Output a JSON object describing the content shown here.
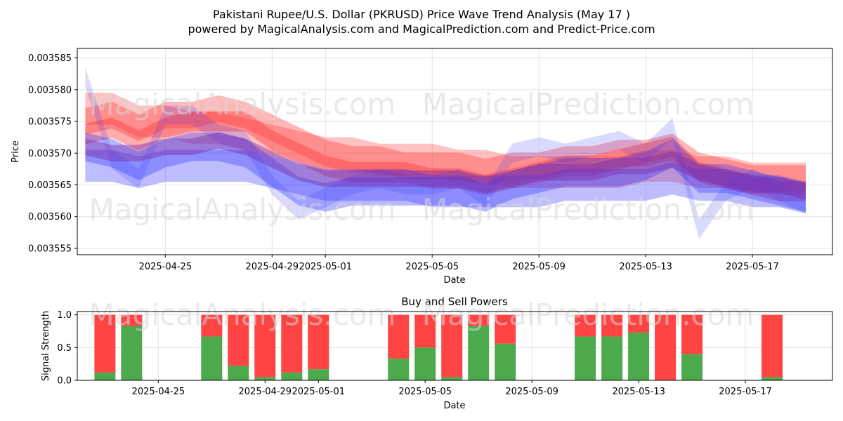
{
  "header": {
    "title_line1": "Pakistani Rupee/U.S. Dollar (PKRUSD) Price Wave Trend Analysis (May 17 )",
    "title_line2": "powered by MagicalAnalysis.com and MagicalPrediction.com and Predict-Price.com"
  },
  "watermarks": {
    "a": "MagicalAnalysis.com",
    "b": "MagicalPrediction.com"
  },
  "colors": {
    "red": "#ff4444",
    "blue": "#4444ff",
    "green": "#4caa4c",
    "grid": "#e6e6e6"
  },
  "chart_data": [
    {
      "type": "area",
      "title": "",
      "xlabel": "Date",
      "ylabel": "Price",
      "ylim": [
        0.003554,
        0.0035865
      ],
      "xlim": [
        "2025-04-21.7",
        "2025-05-20.0"
      ],
      "x_ticks": [
        "2025-04-25",
        "2025-04-29",
        "2025-05-01",
        "2025-05-05",
        "2025-05-09",
        "2025-05-13",
        "2025-05-17"
      ],
      "y_ticks": [
        "0.003555",
        "0.003560",
        "0.003565",
        "0.003570",
        "0.003575",
        "0.003580",
        "0.003585"
      ],
      "grid": true,
      "dates": [
        "2025-04-22",
        "2025-04-23",
        "2025-04-24",
        "2025-04-25",
        "2025-04-26",
        "2025-04-27",
        "2025-04-28",
        "2025-04-29",
        "2025-04-30",
        "2025-05-01",
        "2025-05-02",
        "2025-05-03",
        "2025-05-04",
        "2025-05-05",
        "2025-05-06",
        "2025-05-07",
        "2025-05-08",
        "2025-05-09",
        "2025-05-10",
        "2025-05-11",
        "2025-05-12",
        "2025-05-13",
        "2025-05-14",
        "2025-05-15",
        "2025-05-16",
        "2025-05-17",
        "2025-05-18",
        "2025-05-19"
      ],
      "series": [
        {
          "color": "red",
          "kind": "band",
          "values": [
            0.003575,
            0.003576,
            0.003574,
            0.003576,
            0.003576,
            0.003577,
            0.003576,
            0.003574,
            0.003572,
            0.00357,
            0.003569,
            0.003569,
            0.003568,
            0.003568,
            0.003568,
            0.003567,
            0.003568,
            0.003568,
            0.003569,
            0.003569,
            0.00357,
            0.00357,
            0.003571,
            0.003568,
            0.003567,
            0.003566,
            0.003566,
            0.003566
          ],
          "width": 4.2e-06,
          "alpha": 0.35
        },
        {
          "color": "red",
          "kind": "band",
          "values": [
            0.003573,
            0.003574,
            0.003572,
            0.003574,
            0.003575,
            0.003575,
            0.003575,
            0.003572,
            0.00357,
            0.003568,
            0.003567,
            0.003567,
            0.003567,
            0.003566,
            0.003566,
            0.003565,
            0.003566,
            0.003567,
            0.003568,
            0.003568,
            0.003569,
            0.00357,
            0.003571,
            0.003567,
            0.003566,
            0.003565,
            0.003564,
            0.003564
          ],
          "width": 3.2e-06,
          "alpha": 0.4
        },
        {
          "color": "red",
          "kind": "band",
          "values": [
            0.003577,
            0.003577,
            0.003575,
            0.003575,
            0.003574,
            0.003574,
            0.003573,
            0.003572,
            0.003571,
            0.00357,
            0.00357,
            0.003569,
            0.003569,
            0.003569,
            0.003568,
            0.003568,
            0.003567,
            0.003567,
            0.003567,
            0.003567,
            0.003567,
            0.003568,
            0.003568,
            0.003567,
            0.003567,
            0.003566,
            0.003566,
            0.003566
          ],
          "width": 5e-06,
          "alpha": 0.3
        },
        {
          "color": "blue",
          "kind": "band",
          "values": [
            0.003582,
            0.003569,
            0.003566,
            0.003576,
            0.003576,
            0.003573,
            0.003572,
            0.003565,
            0.003561,
            0.003563,
            0.003565,
            0.003566,
            0.003565,
            0.003565,
            0.003566,
            0.003563,
            0.00357,
            0.003571,
            0.00357,
            0.003571,
            0.003572,
            0.00357,
            0.003574,
            0.003558,
            0.003564,
            0.003566,
            0.003564,
            0.003562
          ],
          "width": 3e-06,
          "alpha": 0.18
        },
        {
          "color": "blue",
          "kind": "band",
          "values": [
            0.003571,
            0.00357,
            0.003568,
            0.00357,
            0.003571,
            0.003571,
            0.00357,
            0.003567,
            0.003564,
            0.003563,
            0.003564,
            0.003564,
            0.003564,
            0.003564,
            0.003564,
            0.003563,
            0.003565,
            0.003566,
            0.003567,
            0.003567,
            0.003567,
            0.003568,
            0.00357,
            0.003566,
            0.003566,
            0.003565,
            0.003564,
            0.003563
          ],
          "width": 4.5e-06,
          "alpha": 0.35
        },
        {
          "color": "blue",
          "kind": "band",
          "values": [
            0.003568,
            0.003568,
            0.003567,
            0.003568,
            0.003568,
            0.003568,
            0.003568,
            0.003567,
            0.003566,
            0.003565,
            0.003565,
            0.003565,
            0.003565,
            0.003564,
            0.003564,
            0.003564,
            0.003564,
            0.003564,
            0.003565,
            0.003565,
            0.003565,
            0.003565,
            0.003566,
            0.003565,
            0.003565,
            0.003564,
            0.003564,
            0.003563
          ],
          "width": 5e-06,
          "alpha": 0.32
        },
        {
          "color": "purple",
          "kind": "band",
          "values": [
            0.003571,
            0.00357,
            0.00357,
            0.003571,
            0.003571,
            0.003572,
            0.003571,
            0.003569,
            0.003567,
            0.003566,
            0.003566,
            0.003566,
            0.003566,
            0.003566,
            0.003566,
            0.003565,
            0.003566,
            0.003567,
            0.003567,
            0.003567,
            0.003568,
            0.003568,
            0.003569,
            0.003567,
            0.003566,
            0.003565,
            0.003565,
            0.003564
          ],
          "width": 2.6e-06,
          "alpha": 0.45
        }
      ]
    },
    {
      "type": "bar",
      "title": "Buy and Sell Powers",
      "xlabel": "Date",
      "ylabel": "Signal Strength",
      "ylim": [
        0,
        1.05
      ],
      "y_ticks": [
        "0.0",
        "0.5",
        "1.0"
      ],
      "x_ticks": [
        "2025-04-25",
        "2025-04-29",
        "2025-05-01",
        "2025-05-05",
        "2025-05-09",
        "2025-05-13",
        "2025-05-17"
      ],
      "grid": true,
      "categories": [
        "2025-04-23",
        "2025-04-24",
        "2025-04-27",
        "2025-04-28",
        "2025-04-29",
        "2025-04-30",
        "2025-05-01",
        "2025-05-04",
        "2025-05-05",
        "2025-05-06",
        "2025-05-07",
        "2025-05-08",
        "2025-05-11",
        "2025-05-12",
        "2025-05-13",
        "2025-05-14",
        "2025-05-15",
        "2025-05-18"
      ],
      "series": [
        {
          "name": "Buy",
          "color": "green",
          "values": [
            0.12,
            0.83,
            0.67,
            0.22,
            0.05,
            0.12,
            0.17,
            0.33,
            0.5,
            0.05,
            0.83,
            0.56,
            0.67,
            0.67,
            0.73,
            0.0,
            0.4,
            0.05
          ]
        },
        {
          "name": "Sell",
          "color": "red",
          "values": [
            0.88,
            0.17,
            0.33,
            0.78,
            0.95,
            0.88,
            0.83,
            0.67,
            0.5,
            0.95,
            0.17,
            0.44,
            0.33,
            0.33,
            0.27,
            1.0,
            0.6,
            0.95
          ]
        }
      ]
    }
  ]
}
